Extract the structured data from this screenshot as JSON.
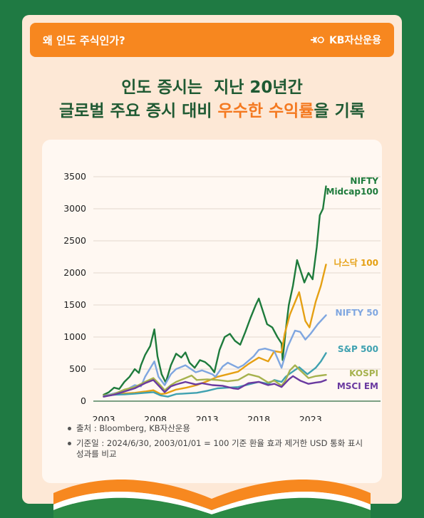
{
  "banner": {
    "question": "왜 인도 주식인가?",
    "brand": "KB자산운용",
    "brand_icon": "kb-star-icon"
  },
  "headline": {
    "line1": "인도 증시는  지난 20년간",
    "line2_prefix": "글로벌 주요 증시 대비 ",
    "line2_highlight": "우수한 수익률",
    "line2_suffix": "을 기록"
  },
  "colors": {
    "background": "#1f7a43",
    "card": "#fde8d6",
    "banner": "#f7871f",
    "headline": "#1f5a33",
    "highlight": "#f47920",
    "gridline": "#e3d8cf"
  },
  "chart_data": {
    "type": "line",
    "xlim": [
      2002,
      2024.6
    ],
    "ylim": [
      0,
      3500
    ],
    "xticks": [
      2003,
      2008,
      2013,
      2018,
      2023
    ],
    "yticks": [
      0,
      500,
      1000,
      1500,
      2000,
      2500,
      3000,
      3500
    ],
    "grid": "horizontal",
    "legend": "right",
    "series": [
      {
        "name": "NIFTY Midcap100",
        "label_lines": [
          "NIFTY",
          "Midcap100"
        ],
        "color": "#1e7b3c",
        "x": [
          2003,
          2003.5,
          2004,
          2004.5,
          2005,
          2005.5,
          2006,
          2006.4,
          2006.6,
          2007,
          2007.5,
          2007.9,
          2008.2,
          2008.6,
          2009,
          2009.5,
          2010,
          2010.5,
          2010.9,
          2011.3,
          2011.8,
          2012.3,
          2012.8,
          2013.3,
          2013.7,
          2014.2,
          2014.7,
          2015.2,
          2015.7,
          2016.2,
          2016.7,
          2017.2,
          2017.7,
          2018,
          2018.4,
          2018.8,
          2019.3,
          2019.8,
          2020.2,
          2020.3,
          2020.6,
          2020.9,
          2021.3,
          2021.7,
          2022,
          2022.4,
          2022.8,
          2023.2,
          2023.6,
          2023.9,
          2024.2,
          2024.5
        ],
        "y": [
          100,
          140,
          210,
          190,
          300,
          380,
          500,
          440,
          560,
          720,
          860,
          1120,
          700,
          420,
          290,
          560,
          740,
          680,
          760,
          600,
          520,
          640,
          610,
          540,
          450,
          800,
          1000,
          1050,
          940,
          880,
          1080,
          1300,
          1500,
          1600,
          1400,
          1200,
          1150,
          1000,
          900,
          640,
          1100,
          1500,
          1800,
          2200,
          2050,
          1850,
          2000,
          1900,
          2400,
          2900,
          3000,
          3350
        ]
      },
      {
        "name": "나스닥 100",
        "label_lines": [
          "나스닥 100"
        ],
        "color": "#e5a013",
        "x": [
          2003,
          2004,
          2005,
          2006,
          2007,
          2007.8,
          2008.5,
          2009,
          2010,
          2011,
          2012,
          2013,
          2014,
          2015,
          2016,
          2017,
          2018,
          2018.9,
          2019.5,
          2020.2,
          2020.5,
          2021,
          2021.9,
          2022.5,
          2022.9,
          2023.5,
          2024,
          2024.5
        ],
        "y": [
          90,
          110,
          120,
          130,
          150,
          170,
          110,
          120,
          180,
          210,
          250,
          310,
          380,
          420,
          460,
          580,
          680,
          620,
          780,
          760,
          1050,
          1350,
          1700,
          1250,
          1150,
          1550,
          1800,
          2130
        ]
      },
      {
        "name": "NIFTY 50",
        "label_lines": [
          "NIFTY 50"
        ],
        "color": "#7fa6e0",
        "x": [
          2003,
          2004,
          2005,
          2006,
          2006.6,
          2007,
          2007.9,
          2008.3,
          2008.9,
          2009.5,
          2010,
          2010.9,
          2011.9,
          2012.5,
          2013.5,
          2013.8,
          2014.5,
          2015,
          2016,
          2016.5,
          2017.5,
          2018,
          2018.6,
          2019.5,
          2020.2,
          2020.8,
          2021.5,
          2022,
          2022.5,
          2023,
          2023.7,
          2024.5
        ],
        "y": [
          80,
          120,
          160,
          250,
          230,
          380,
          620,
          380,
          250,
          420,
          500,
          560,
          450,
          480,
          420,
          380,
          540,
          600,
          520,
          560,
          700,
          800,
          820,
          780,
          520,
          850,
          1100,
          1080,
          960,
          1050,
          1200,
          1340
        ]
      },
      {
        "name": "S&P 500",
        "label_lines": [
          "S&P 500"
        ],
        "color": "#3fa1b0",
        "x": [
          2003,
          2004,
          2005,
          2006,
          2007,
          2007.8,
          2008.5,
          2009.2,
          2010,
          2011,
          2012,
          2013,
          2014,
          2015,
          2016,
          2017,
          2018,
          2018.9,
          2019.5,
          2020.2,
          2020.6,
          2021,
          2021.9,
          2022.7,
          2023.5,
          2024,
          2024.5
        ],
        "y": [
          80,
          100,
          105,
          115,
          130,
          140,
          90,
          70,
          110,
          120,
          130,
          160,
          200,
          210,
          220,
          260,
          300,
          270,
          330,
          300,
          380,
          430,
          530,
          420,
          520,
          620,
          750
        ]
      },
      {
        "name": "KOSPI",
        "label_lines": [
          "KOSPI"
        ],
        "color": "#a6b24e",
        "x": [
          2003,
          2004,
          2005,
          2006,
          2007,
          2007.8,
          2008.3,
          2008.9,
          2009.5,
          2010,
          2010.9,
          2011.5,
          2012,
          2013,
          2014,
          2015,
          2016,
          2017,
          2018,
          2018.9,
          2019.5,
          2020.2,
          2020.6,
          2021,
          2021.5,
          2022,
          2022.8,
          2023.5,
          2024,
          2024.5
        ],
        "y": [
          70,
          110,
          180,
          220,
          300,
          360,
          280,
          170,
          250,
          300,
          360,
          400,
          330,
          340,
          330,
          310,
          330,
          420,
          380,
          290,
          320,
          240,
          330,
          480,
          560,
          480,
          360,
          390,
          400,
          410
        ]
      },
      {
        "name": "MSCI EM",
        "label_lines": [
          "MSCI EM"
        ],
        "color": "#6a3aa0",
        "x": [
          2003,
          2004,
          2005,
          2006,
          2007,
          2007.8,
          2008.5,
          2008.9,
          2009.5,
          2010,
          2010.9,
          2011.9,
          2012.5,
          2013.5,
          2014.5,
          2015.5,
          2016,
          2017,
          2018,
          2018.9,
          2019.5,
          2020.2,
          2020.9,
          2021.3,
          2022,
          2022.8,
          2023.5,
          2024,
          2024.5
        ],
        "y": [
          70,
          100,
          150,
          200,
          280,
          330,
          210,
          140,
          230,
          260,
          300,
          260,
          280,
          250,
          240,
          200,
          190,
          280,
          300,
          250,
          270,
          220,
          340,
          390,
          320,
          270,
          290,
          300,
          330
        ]
      }
    ]
  },
  "notes": [
    "출처 : Bloomberg, KB자산운용",
    "기준일 : 2024/6/30, 2003/01/01 = 100 기준 환율 효과 제거한 USD 통화 표시 성과를 비교"
  ]
}
